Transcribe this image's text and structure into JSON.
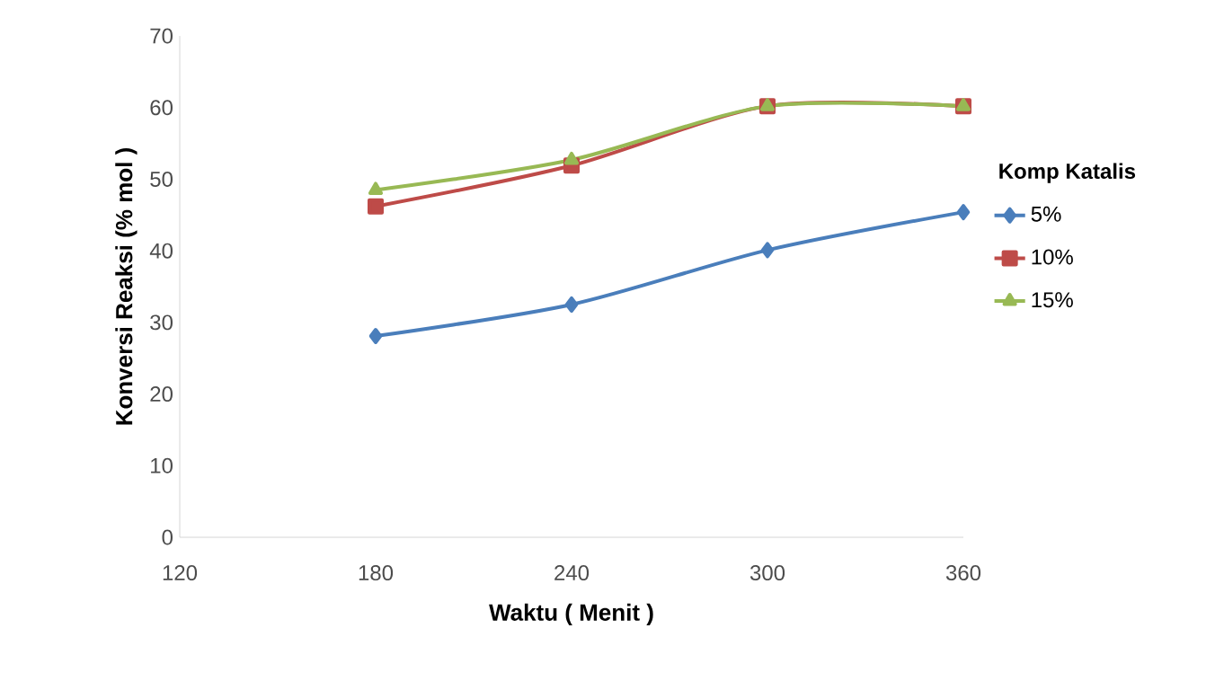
{
  "chart_data": {
    "type": "line",
    "xlabel": "Waktu ( Menit )",
    "ylabel": "Konversi Reaksi (% mol )",
    "legend_title": "Komp Katalis",
    "legend": "right",
    "grid": false,
    "x": [
      180,
      240,
      300,
      360
    ],
    "xlim": [
      120,
      360
    ],
    "xticks": [
      120,
      180,
      240,
      300,
      360
    ],
    "ylim": [
      0,
      70
    ],
    "yticks": [
      0,
      10,
      20,
      30,
      40,
      50,
      60,
      70
    ],
    "series": [
      {
        "name": "5%",
        "color": "#4a7ebb",
        "marker": "diamond",
        "values": [
          28.1,
          32.5,
          40.1,
          45.4
        ]
      },
      {
        "name": "10%",
        "color": "#be4b48",
        "marker": "square",
        "values": [
          46.2,
          51.9,
          60.2,
          60.2
        ]
      },
      {
        "name": "15%",
        "color": "#98b954",
        "marker": "triangle",
        "values": [
          48.5,
          52.7,
          60.2,
          60.2
        ]
      }
    ]
  }
}
